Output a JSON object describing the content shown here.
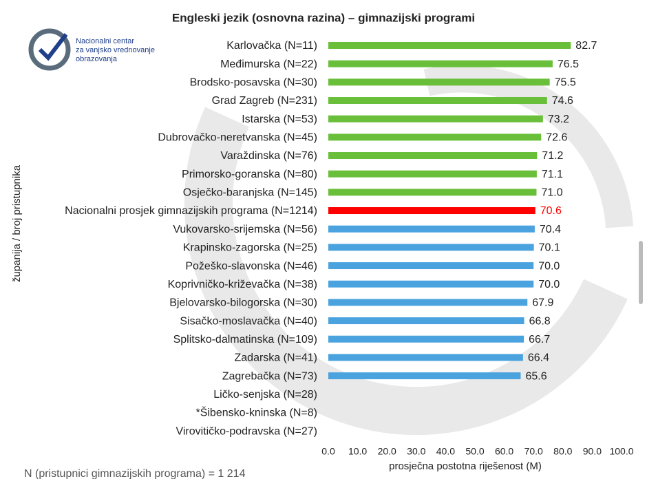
{
  "logo": {
    "lines": [
      "Nacionalni centar",
      "za vanjsko vrednovanje",
      "obrazovanja"
    ]
  },
  "chart_data": {
    "type": "bar",
    "orientation": "horizontal",
    "title": "Engleski jezik (osnovna razina) – gimnazijski programi",
    "y_label": "županija / broj pristupnika",
    "x_label": "prosječna postotna riješenost (M)",
    "footnote": "N (pristupnici gimnazijskih programa) = 1 214",
    "categories": [
      "Karlovačka (N=11)",
      "Međimurska (N=22)",
      "Brodsko-posavska (N=30)",
      "Grad Zagreb (N=231)",
      "Istarska (N=53)",
      "Dubrovačko-neretvanska (N=45)",
      "Varaždinska (N=76)",
      "Primorsko-goranska (N=80)",
      "Osječko-baranjska (N=145)",
      "Nacionalni prosjek gimnazijskih programa (N=1214)",
      "Vukovarsko-srijemska (N=56)",
      "Krapinsko-zagorska (N=25)",
      "Požeško-slavonska (N=46)",
      "Koprivničko-križevačka (N=38)",
      "Bjelovarsko-bilogorska (N=30)",
      "Sisačko-moslavačka (N=40)",
      "Splitsko-dalmatinska (N=109)",
      "Zadarska (N=41)",
      "Zagrebačka (N=73)",
      "Ličko-senjska (N=28)",
      "*Šibensko-kninska (N=8)",
      "Virovitičko-podravska (N=27)"
    ],
    "values": [
      82.7,
      76.5,
      75.5,
      74.6,
      73.2,
      72.6,
      71.2,
      71.1,
      71.0,
      70.6,
      70.4,
      70.1,
      70.0,
      70.0,
      67.9,
      66.8,
      66.7,
      66.4,
      65.6,
      null,
      null,
      null
    ],
    "value_labels": [
      "82.7",
      "76.5",
      "75.5",
      "74.6",
      "73.2",
      "72.6",
      "71.2",
      "71.1",
      "71.0",
      "70.6",
      "70.4",
      "70.1",
      "70.0",
      "70.0",
      "67.9",
      "66.8",
      "66.7",
      "66.4",
      "65.6",
      null,
      null,
      null
    ],
    "colors": [
      "#6abf3a",
      "#6abf3a",
      "#6abf3a",
      "#6abf3a",
      "#6abf3a",
      "#6abf3a",
      "#6abf3a",
      "#6abf3a",
      "#6abf3a",
      "#ff0000",
      "#4aa3df",
      "#4aa3df",
      "#4aa3df",
      "#4aa3df",
      "#4aa3df",
      "#4aa3df",
      "#4aa3df",
      "#4aa3df",
      "#4aa3df",
      null,
      null,
      null
    ],
    "value_label_colors": [
      "#222",
      "#222",
      "#222",
      "#222",
      "#222",
      "#222",
      "#222",
      "#222",
      "#222",
      "#ff0000",
      "#222",
      "#222",
      "#222",
      "#222",
      "#222",
      "#222",
      "#222",
      "#222",
      "#222",
      null,
      null,
      null
    ],
    "xlim": [
      0,
      100
    ],
    "xticks": [
      {
        "value": 0,
        "label": "0.0"
      },
      {
        "value": 10,
        "label": "10.0"
      },
      {
        "value": 20,
        "label": "20.0"
      },
      {
        "value": 30,
        "label": "30.0"
      },
      {
        "value": 40,
        "label": "40.0"
      },
      {
        "value": 50,
        "label": "50.0"
      },
      {
        "value": 60,
        "label": "60.0"
      },
      {
        "value": 70,
        "label": "70.0"
      },
      {
        "value": 80,
        "label": "80.0"
      },
      {
        "value": 90,
        "label": "90.0"
      },
      {
        "value": 100,
        "label": "100.0"
      }
    ],
    "grid": false
  }
}
